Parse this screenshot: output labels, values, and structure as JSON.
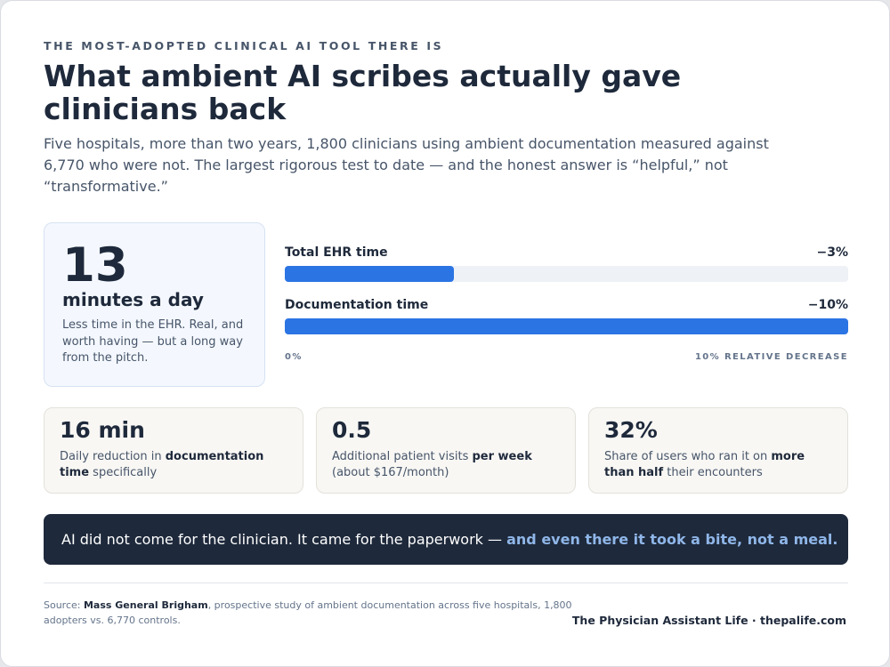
{
  "eyebrow": "THE MOST-ADOPTED CLINICAL AI TOOL THERE IS",
  "title": "What ambient AI scribes actually gave clinicians back",
  "subtitle": "Five hospitals, more than two years, 1,800 clinicians using ambient documentation measured against 6,770 who were not. The largest rigorous test to date — and the honest answer is “helpful,” not “transformative.”",
  "hero": {
    "number": "13",
    "unit": "minutes a day",
    "description": "Less time in the EHR. Real, and worth having — but a long way from the pitch."
  },
  "chart_data": {
    "type": "bar",
    "categories": [
      "Total EHR time",
      "Documentation time"
    ],
    "values": [
      3,
      10
    ],
    "value_labels": [
      "−3%",
      "−10%"
    ],
    "xlim": [
      0,
      10
    ],
    "axis_min_label": "0%",
    "axis_max_label": "10% RELATIVE DECREASE",
    "colors": {
      "fill": "#2b74e4",
      "track": "#eef1f5"
    }
  },
  "stats": [
    {
      "value": "16 min",
      "pre": "Daily reduction in ",
      "bold": "documentation time",
      "post": " specifically"
    },
    {
      "value": "0.5",
      "pre": "Additional patient visits ",
      "bold": "per week",
      "post": " (about $167/month)"
    },
    {
      "value": "32%",
      "pre": "Share of users who ran it on ",
      "bold": "more than half",
      "post": " their encounters"
    }
  ],
  "banner": {
    "text": "AI did not come for the clinician. It came for the paperwork — ",
    "highlight": "and even there it took a bite, not a meal."
  },
  "footer": {
    "source_prefix": "Source: ",
    "source_bold": "Mass General Brigham",
    "source_rest": ", prospective study of ambient documentation across five hospitals, 1,800 adopters vs. 6,770 controls.",
    "brand": "The Physician Assistant Life · thepalife.com"
  },
  "colors": {
    "dark": "#1e293b",
    "accent": "#2b74e4",
    "highlight": "#8fb6e8"
  }
}
